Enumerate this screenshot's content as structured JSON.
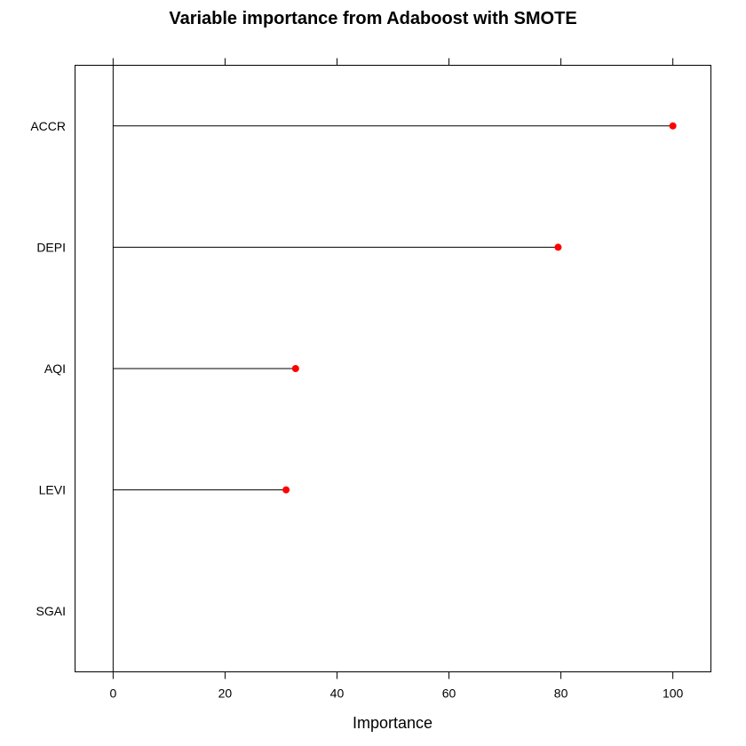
{
  "chart_data": {
    "type": "dot",
    "title": "Variable importance from Adaboost with SMOTE",
    "xlabel": "Importance",
    "ylabel": "",
    "categories": [
      "ACCR",
      "DEPI",
      "AQI",
      "LEVI",
      "SGAI"
    ],
    "values": [
      100,
      79.5,
      32.6,
      30.9,
      0
    ],
    "xlim": [
      -6.8,
      106.8
    ],
    "xticks": [
      0,
      20,
      40,
      60,
      80,
      100
    ],
    "xtick_labels": [
      "0",
      "20",
      "40",
      "60",
      "80",
      "100"
    ],
    "grid": false,
    "legend": "none",
    "point_color": "#ff0000",
    "line_color": "#000000",
    "reference_line_at": 0
  }
}
